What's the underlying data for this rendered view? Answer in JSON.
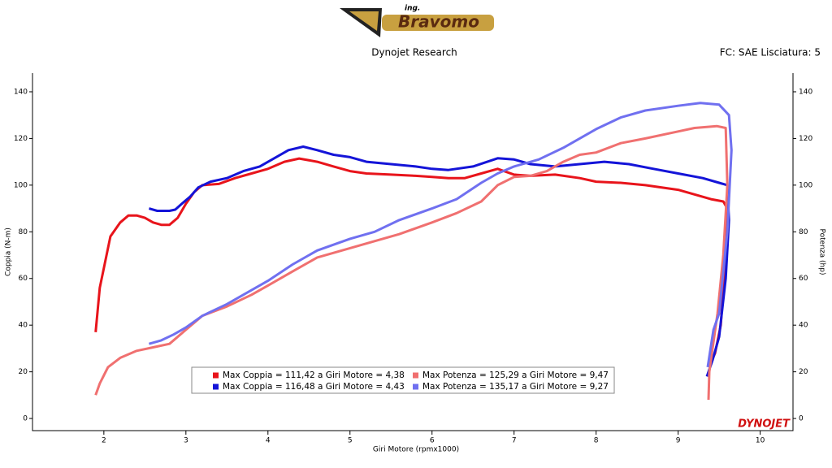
{
  "chart_data": {
    "type": "line",
    "logo_small": "ing.",
    "logo": "Bravomo",
    "title": "Dynojet Research",
    "subtitle": "FC: SAE Lisciatura: 5",
    "watermark": "DYNOJET",
    "x_label": "Giri Motore (rpmx1000)",
    "y_label": "Coppia (N-m)",
    "y2_label": "Potenza (hp)",
    "xlim": [
      1.13,
      10.4
    ],
    "xticks": [
      2,
      3,
      4,
      5,
      6,
      7,
      8,
      9,
      10
    ],
    "ylim": [
      -5.2,
      148
    ],
    "yticks": [
      0,
      20,
      40,
      60,
      80,
      100,
      120,
      140
    ],
    "y2lim": [
      -5.2,
      148
    ],
    "y2ticks": [
      0,
      20,
      40,
      60,
      80,
      100,
      120,
      140
    ],
    "series": [
      {
        "name": "Max Coppia = 111,42 a Giri Motore = 4,38",
        "color": "#e8141b",
        "x": [
          1.9,
          1.95,
          2.08,
          2.2,
          2.3,
          2.4,
          2.5,
          2.6,
          2.7,
          2.8,
          2.9,
          3.0,
          3.1,
          3.2,
          3.4,
          3.6,
          3.8,
          4.0,
          4.2,
          4.38,
          4.6,
          4.8,
          5.0,
          5.2,
          5.5,
          5.8,
          6.0,
          6.2,
          6.4,
          6.6,
          6.8,
          7.0,
          7.2,
          7.5,
          7.8,
          8.0,
          8.3,
          8.6,
          9.0,
          9.2,
          9.4,
          9.55,
          9.6,
          9.58,
          9.52,
          9.45,
          9.4,
          9.37
        ],
        "values": [
          37,
          56,
          78,
          84,
          87,
          87,
          86,
          84,
          83,
          83,
          86,
          92,
          97,
          100,
          100.5,
          103,
          105,
          107,
          110,
          111.4,
          110,
          108,
          106,
          105,
          104.5,
          104,
          103.5,
          103,
          103,
          105,
          107,
          104.5,
          104,
          104.5,
          103,
          101.5,
          101,
          100,
          98,
          96,
          94,
          93,
          90,
          70,
          40,
          28,
          24,
          22
        ]
      },
      {
        "name": "Max Coppia = 116,48 a Giri Motore = 4,43",
        "color": "#1414d8",
        "x": [
          2.55,
          2.65,
          2.8,
          2.87,
          2.95,
          3.05,
          3.15,
          3.3,
          3.5,
          3.7,
          3.9,
          4.1,
          4.25,
          4.43,
          4.6,
          4.8,
          5.0,
          5.2,
          5.5,
          5.8,
          6.0,
          6.2,
          6.5,
          6.8,
          7.0,
          7.2,
          7.5,
          7.8,
          8.1,
          8.4,
          8.7,
          9.0,
          9.3,
          9.5,
          9.6,
          9.62,
          9.58,
          9.5,
          9.42,
          9.35
        ],
        "values": [
          90,
          89,
          89,
          89.5,
          92,
          95,
          99,
          101.5,
          103,
          106,
          108,
          112,
          115,
          116.5,
          115,
          113,
          112,
          110,
          109,
          108,
          107,
          106.5,
          108,
          111.5,
          111,
          109,
          108,
          109,
          110,
          109,
          107,
          105,
          103,
          101,
          100,
          85,
          60,
          35,
          25,
          18
        ]
      },
      {
        "name": "Max Potenza = 125,29 a Giri Motore = 9,47",
        "color": "#f07070",
        "axis": "y2",
        "x": [
          1.9,
          1.95,
          2.05,
          2.2,
          2.4,
          2.6,
          2.8,
          3.0,
          3.2,
          3.5,
          3.8,
          4.0,
          4.3,
          4.6,
          5.0,
          5.3,
          5.6,
          6.0,
          6.3,
          6.6,
          6.8,
          7.0,
          7.2,
          7.4,
          7.6,
          7.8,
          8.0,
          8.3,
          8.6,
          9.0,
          9.2,
          9.47,
          9.58,
          9.6,
          9.55,
          9.48,
          9.42,
          9.38,
          9.37
        ],
        "values": [
          10,
          15,
          22,
          26,
          29,
          30.5,
          32,
          38,
          44,
          48,
          53,
          57,
          63,
          69,
          73,
          76,
          79,
          84,
          88,
          93,
          100,
          103.5,
          104,
          106,
          110,
          113,
          114,
          118,
          120,
          123,
          124.5,
          125.3,
          124.5,
          100,
          70,
          45,
          30,
          20,
          8
        ]
      },
      {
        "name": "Max Potenza = 135,17 a Giri Motore = 9,27",
        "color": "#7070f0",
        "axis": "y2",
        "x": [
          2.55,
          2.7,
          2.85,
          3.0,
          3.2,
          3.5,
          3.8,
          4.0,
          4.3,
          4.6,
          5.0,
          5.3,
          5.6,
          6.0,
          6.3,
          6.6,
          6.8,
          7.0,
          7.3,
          7.6,
          8.0,
          8.3,
          8.6,
          9.0,
          9.27,
          9.5,
          9.62,
          9.65,
          9.6,
          9.5,
          9.43,
          9.36
        ],
        "values": [
          32,
          33.5,
          36,
          39,
          44,
          49,
          55,
          59,
          66,
          72,
          77,
          80,
          85,
          90,
          94,
          101,
          105,
          108,
          111,
          116,
          124,
          129,
          132,
          134,
          135.2,
          134.5,
          130,
          115,
          80,
          45,
          38,
          22
        ]
      }
    ]
  }
}
